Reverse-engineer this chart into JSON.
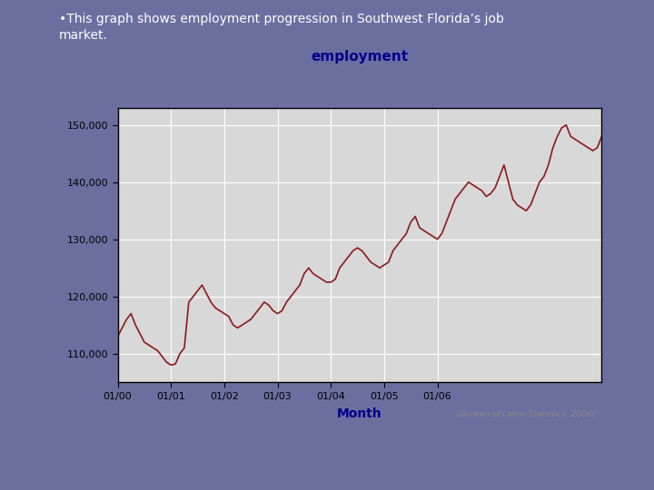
{
  "title": "employment",
  "xlabel": "Month",
  "ylabel": "",
  "line_color": "#8B1A1A",
  "background_color": "#6B6FA0",
  "chart_bg_color": "#D8D8D8",
  "white_panel_color": "#FFFFFF",
  "title_color": "#00008B",
  "xlabel_color": "#00008B",
  "ytick_color": "#000000",
  "xtick_color": "#000000",
  "annotation": "(Bureau of Labor Statistics, 2006)",
  "ylim": [
    105000,
    153000
  ],
  "yticks": [
    110000,
    120000,
    130000,
    140000,
    150000
  ],
  "xtick_positions": [
    0,
    12,
    24,
    36,
    48,
    60,
    72
  ],
  "xtick_labels": [
    "01/00",
    "01/01",
    "01/02",
    "01/03",
    "01/04",
    "01/05",
    "01/06"
  ],
  "values": [
    113000,
    114500,
    116000,
    117000,
    115000,
    113500,
    112000,
    111500,
    111000,
    110500,
    109500,
    108500,
    108000,
    108200,
    110000,
    111000,
    119000,
    120000,
    121000,
    122000,
    120500,
    119000,
    118000,
    117500,
    117000,
    116500,
    115000,
    114500,
    115000,
    115500,
    116000,
    117000,
    118000,
    119000,
    118500,
    117500,
    117000,
    117500,
    119000,
    120000,
    121000,
    122000,
    124000,
    125000,
    124000,
    123500,
    123000,
    122500,
    122500,
    123000,
    125000,
    126000,
    127000,
    128000,
    128500,
    128000,
    127000,
    126000,
    125500,
    125000,
    125500,
    126000,
    128000,
    129000,
    130000,
    131000,
    133000,
    134000,
    132000,
    131500,
    131000,
    130500,
    130000,
    131000,
    133000,
    135000,
    137000,
    138000,
    139000,
    140000,
    139500,
    139000,
    138500,
    137500,
    138000,
    139000,
    141000,
    143000,
    140000,
    137000,
    136000,
    135500,
    135000,
    136000,
    138000,
    140000,
    141000,
    143000,
    146000,
    148000,
    149500,
    150000,
    148000,
    147500,
    147000,
    146500,
    146000,
    145500,
    146000,
    148000
  ]
}
